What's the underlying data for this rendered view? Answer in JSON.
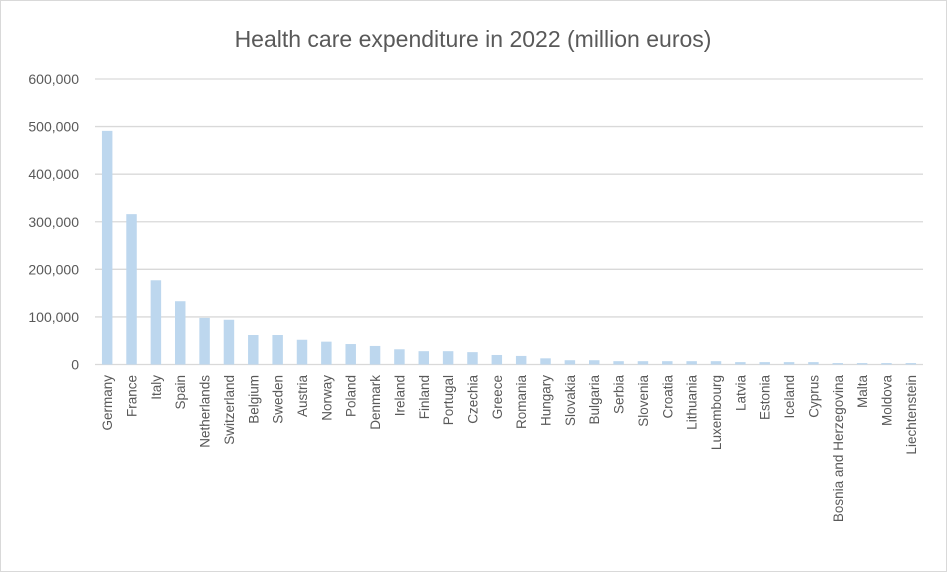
{
  "chart_data": {
    "type": "bar",
    "title": "Health care expenditure in 2022 (million euros)",
    "xlabel": "",
    "ylabel": "",
    "ylim": [
      0,
      600000
    ],
    "yticks": [
      0,
      100000,
      200000,
      300000,
      400000,
      500000,
      600000
    ],
    "ytick_labels": [
      "0",
      "100,000",
      "200,000",
      "300,000",
      "400,000",
      "500,000",
      "600,000"
    ],
    "grid": true,
    "legend": "none",
    "bar_color": "#bdd7ee",
    "categories": [
      "Germany",
      "France",
      "Italy",
      "Spain",
      "Netherlands",
      "Switzerland",
      "Belgium",
      "Sweden",
      "Austria",
      "Norway",
      "Poland",
      "Denmark",
      "Ireland",
      "Finland",
      "Portugal",
      "Czechia",
      "Greece",
      "Romania",
      "Hungary",
      "Slovakia",
      "Bulgaria",
      "Serbia",
      "Slovenia",
      "Croatia",
      "Lithuania",
      "Luxembourg",
      "Latvia",
      "Estonia",
      "Iceland",
      "Cyprus",
      "Bosnia and Herzegovina",
      "Malta",
      "Moldova",
      "Liechtenstein"
    ],
    "values": [
      491000,
      316000,
      177000,
      133000,
      98000,
      94000,
      62000,
      62000,
      52000,
      48000,
      43000,
      39000,
      32000,
      28000,
      28000,
      26000,
      20000,
      18000,
      13000,
      9000,
      9000,
      7000,
      7000,
      7000,
      7000,
      7000,
      5000,
      5000,
      5000,
      5000,
      3000,
      3000,
      3000,
      3000
    ]
  }
}
